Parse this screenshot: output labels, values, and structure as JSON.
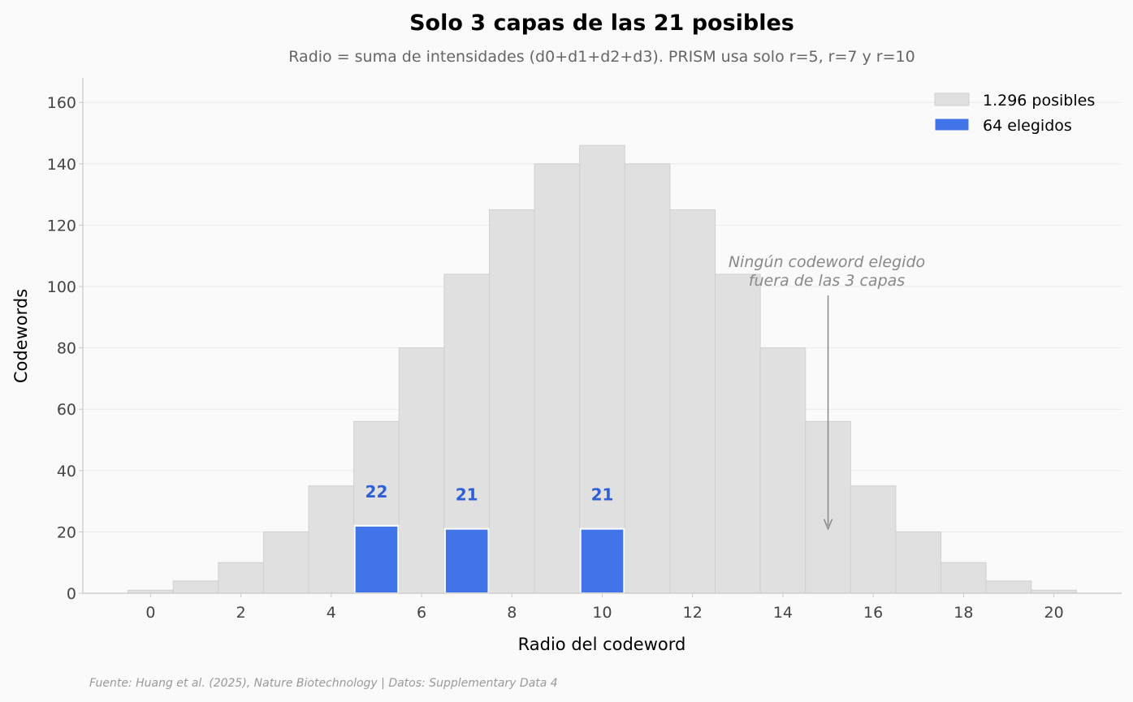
{
  "chart_data": {
    "type": "bar",
    "title": "Solo 3 capas de las 21 posibles",
    "subtitle": "Radio = suma de intensidades (d0+d1+d2+d3). PRISM usa solo r=5, r=7 y r=10",
    "xlabel": "Radio del codeword",
    "ylabel": "Codewords",
    "x": [
      0,
      1,
      2,
      3,
      4,
      5,
      6,
      7,
      8,
      9,
      10,
      11,
      12,
      13,
      14,
      15,
      16,
      17,
      18,
      19,
      20
    ],
    "xticks": [
      0,
      2,
      4,
      6,
      8,
      10,
      12,
      14,
      16,
      18,
      20
    ],
    "yticks": [
      0,
      20,
      40,
      60,
      80,
      100,
      120,
      140,
      160
    ],
    "xlim": [
      -1.5,
      21.5
    ],
    "ylim": [
      0,
      168
    ],
    "grid": "horizontal",
    "legend_position": "top-right",
    "series": [
      {
        "name": "1.296 posibles",
        "color": "#e0e0e0",
        "values": [
          1,
          4,
          10,
          20,
          35,
          56,
          80,
          104,
          125,
          140,
          146,
          140,
          125,
          104,
          80,
          56,
          35,
          20,
          10,
          4,
          1
        ]
      },
      {
        "name": "64 elegidos",
        "color": "#4174e8",
        "values": [
          0,
          0,
          0,
          0,
          0,
          22,
          0,
          21,
          0,
          0,
          21,
          0,
          0,
          0,
          0,
          0,
          0,
          0,
          0,
          0,
          0
        ]
      }
    ],
    "data_labels": [
      {
        "x": 5,
        "text": "22"
      },
      {
        "x": 7,
        "text": "21"
      },
      {
        "x": 10,
        "text": "21"
      }
    ],
    "annotation": {
      "lines": [
        "Ningún codeword elegido",
        "fuera de las 3 capas"
      ],
      "arrow_to": {
        "x": 15,
        "y": 21
      }
    },
    "source": "Fuente: Huang et al. (2025), Nature Biotechnology | Datos: Supplementary Data 4"
  }
}
